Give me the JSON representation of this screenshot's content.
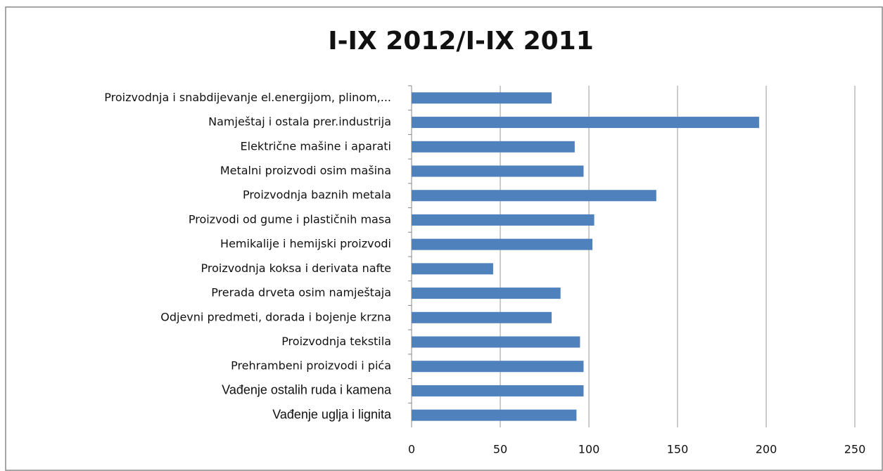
{
  "chart_data": {
    "type": "bar",
    "orientation": "horizontal",
    "title": "I-IX 2012/I-IX 2011",
    "categories": [
      "Proizvodnja i snabdijevanje el.energijom, plinom,...",
      "Namještaj i ostala prer.industrija",
      "Električne mašine i aparati",
      "Metalni proizvodi osim mašina",
      "Proizvodnja baznih metala",
      "Proizvodi od gume i plastičnih masa",
      "Hemikalije i hemijski proizvodi",
      "Proizvodnja koksa i derivata nafte",
      "Prerada drveta osim namještaja",
      "Odjevni predmeti, dorada i bojenje krzna",
      "Proizvodnja tekstila",
      "Prehrambeni proizvodi i pića",
      "Vađenje ostalih ruda i kamena",
      "Vađenje uglja i lignita"
    ],
    "values": [
      79,
      196,
      92,
      97,
      138,
      103,
      102,
      46,
      84,
      79,
      95,
      97,
      97,
      93
    ],
    "color": "#4f81bd",
    "xlim": [
      0,
      250
    ],
    "xticks": [
      0,
      50,
      100,
      150,
      200,
      250
    ],
    "grid": true
  }
}
